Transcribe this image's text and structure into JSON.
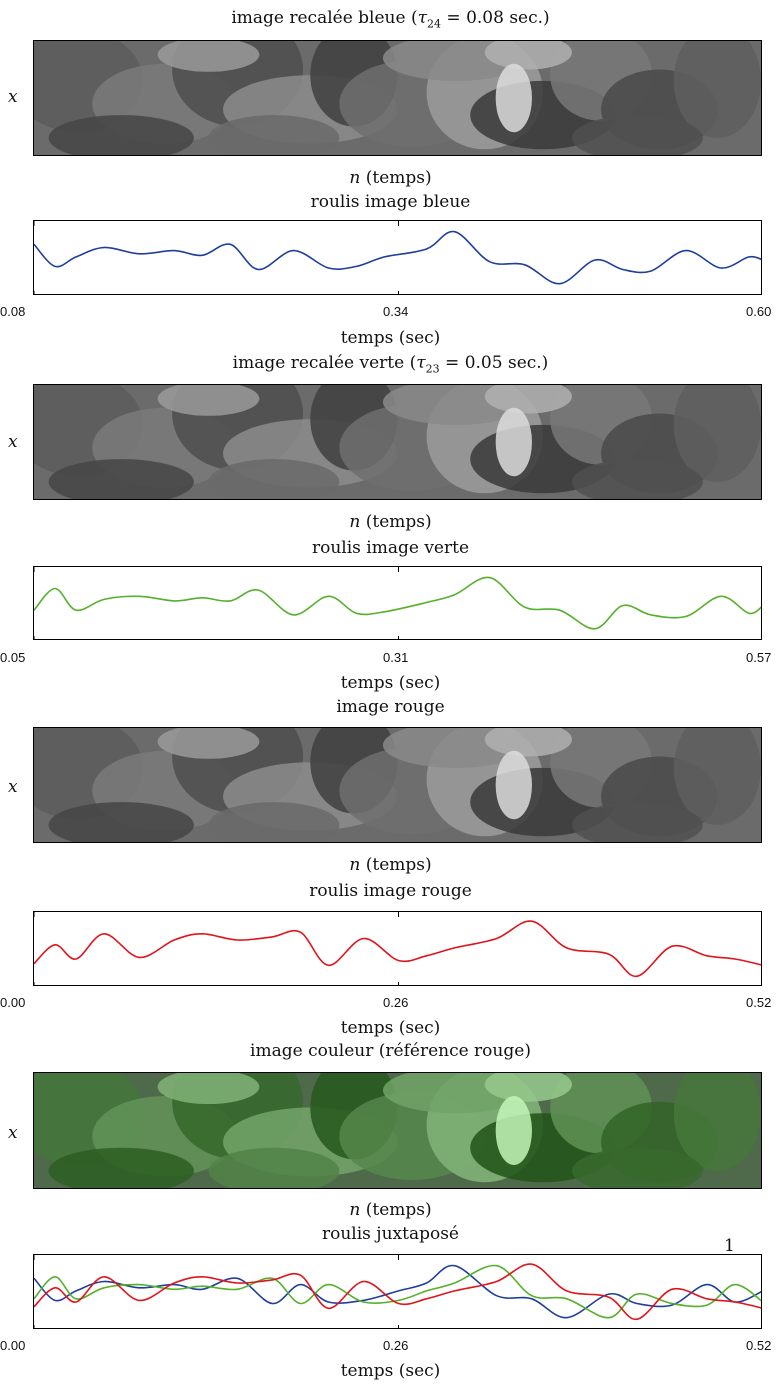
{
  "panels": [
    {
      "kind": "image",
      "title": "image recalée bleue (τ24 = 0.08 sec.)",
      "title_main": "image recalée bleue (",
      "tau": "τ",
      "tau_sub": "24",
      "title_rest": " = 0.08 sec.)",
      "ylabel": "x",
      "xlabel_var": "n",
      "xlabel_rest": " (temps)",
      "tone": "gray"
    },
    {
      "kind": "line",
      "title": "roulis image bleue",
      "xlabel": "temps (sec)"
    },
    {
      "kind": "image",
      "title": "image recalée verte (τ23 = 0.05 sec.)",
      "title_main": "image recalée verte (",
      "tau": "τ",
      "tau_sub": "23",
      "title_rest": " = 0.05 sec.)",
      "ylabel": "x",
      "xlabel_var": "n",
      "xlabel_rest": " (temps)",
      "tone": "gray"
    },
    {
      "kind": "line",
      "title": "roulis image verte",
      "xlabel": "temps (sec)"
    },
    {
      "kind": "image",
      "title": "image rouge",
      "ylabel": "x",
      "xlabel_var": "n",
      "xlabel_rest": " (temps)",
      "tone": "gray"
    },
    {
      "kind": "line",
      "title": "roulis image rouge",
      "xlabel": "temps (sec)"
    },
    {
      "kind": "image",
      "title": "image couleur (référence rouge)",
      "ylabel": "x",
      "xlabel_var": "n",
      "xlabel_rest": " (temps)",
      "tone": "color"
    },
    {
      "kind": "line",
      "title": "roulis juxtaposé",
      "xlabel": "temps (sec)",
      "annotation": "1"
    }
  ],
  "chart_data": [
    {
      "type": "line",
      "title": "roulis image bleue",
      "xlabel": "temps (sec)",
      "ylabel": "",
      "x_ticks": [
        "0.08",
        "0.34",
        "0.60"
      ],
      "xlim": [
        0.08,
        0.6
      ],
      "ylim": [
        -1,
        1
      ],
      "grid": false,
      "series": [
        {
          "color": "#1f3f9e",
          "x": [
            0.08,
            0.095,
            0.11,
            0.13,
            0.155,
            0.18,
            0.2,
            0.22,
            0.24,
            0.265,
            0.29,
            0.31,
            0.33,
            0.36,
            0.38,
            0.405,
            0.43,
            0.455,
            0.48,
            0.5,
            0.52,
            0.545,
            0.57,
            0.59,
            0.6
          ],
          "y": [
            0.45,
            -0.25,
            0.05,
            0.35,
            0.15,
            0.25,
            0.1,
            0.45,
            -0.35,
            0.25,
            -0.3,
            -0.25,
            0.05,
            0.3,
            0.85,
            -0.1,
            -0.2,
            -0.8,
            -0.05,
            -0.35,
            -0.4,
            0.25,
            -0.3,
            0.05,
            -0.05
          ]
        }
      ]
    },
    {
      "type": "line",
      "title": "roulis image verte",
      "xlabel": "temps (sec)",
      "ylabel": "",
      "x_ticks": [
        "0.05",
        "0.31",
        "0.57"
      ],
      "xlim": [
        0.05,
        0.57
      ],
      "ylim": [
        -1,
        1
      ],
      "grid": false,
      "series": [
        {
          "color": "#55b02a",
          "x": [
            0.05,
            0.065,
            0.08,
            0.1,
            0.125,
            0.15,
            0.17,
            0.19,
            0.21,
            0.235,
            0.26,
            0.28,
            0.3,
            0.33,
            0.35,
            0.375,
            0.4,
            0.425,
            0.45,
            0.47,
            0.49,
            0.515,
            0.54,
            0.56,
            0.57
          ],
          "y": [
            -0.2,
            0.5,
            -0.2,
            0.15,
            0.25,
            0.1,
            0.2,
            0.1,
            0.45,
            -0.35,
            0.25,
            -0.3,
            -0.25,
            0.05,
            0.3,
            0.85,
            -0.1,
            -0.2,
            -0.8,
            -0.05,
            -0.35,
            -0.4,
            0.25,
            -0.3,
            -0.05
          ]
        }
      ]
    },
    {
      "type": "line",
      "title": "roulis image rouge",
      "xlabel": "temps (sec)",
      "ylabel": "",
      "x_ticks": [
        "0.00",
        "0.26",
        "0.52"
      ],
      "xlim": [
        0.0,
        0.52
      ],
      "ylim": [
        -1,
        1
      ],
      "grid": false,
      "series": [
        {
          "color": "#e0141b",
          "x": [
            0.0,
            0.015,
            0.03,
            0.05,
            0.075,
            0.1,
            0.12,
            0.145,
            0.17,
            0.19,
            0.21,
            0.235,
            0.26,
            0.28,
            0.3,
            0.33,
            0.355,
            0.38,
            0.41,
            0.43,
            0.455,
            0.48,
            0.5,
            0.52
          ],
          "y": [
            -0.45,
            0.15,
            -0.3,
            0.5,
            -0.25,
            0.3,
            0.5,
            0.3,
            0.4,
            0.55,
            -0.5,
            0.35,
            -0.35,
            -0.2,
            0.05,
            0.35,
            0.9,
            0.05,
            -0.15,
            -0.85,
            0.1,
            -0.2,
            -0.3,
            -0.5
          ]
        }
      ]
    },
    {
      "type": "line",
      "title": "roulis juxtaposé",
      "xlabel": "temps (sec)",
      "ylabel": "",
      "x_ticks": [
        "0.00",
        "0.26",
        "0.52"
      ],
      "xlim": [
        0.0,
        0.52
      ],
      "ylim": [
        -1,
        1
      ],
      "grid": false,
      "annotations": [
        "1"
      ],
      "series": [
        {
          "color": "#1f3f9e",
          "x": [
            0.0,
            0.015,
            0.03,
            0.05,
            0.075,
            0.1,
            0.12,
            0.145,
            0.17,
            0.19,
            0.21,
            0.235,
            0.26,
            0.28,
            0.3,
            0.33,
            0.355,
            0.38,
            0.41,
            0.43,
            0.455,
            0.48,
            0.5,
            0.52
          ],
          "y": [
            0.45,
            -0.25,
            0.05,
            0.35,
            0.15,
            0.25,
            0.1,
            0.45,
            -0.35,
            0.25,
            -0.3,
            -0.25,
            0.05,
            0.3,
            0.85,
            -0.1,
            -0.2,
            -0.8,
            -0.05,
            -0.35,
            -0.4,
            0.25,
            -0.3,
            0.05
          ]
        },
        {
          "color": "#55b02a",
          "x": [
            0.0,
            0.015,
            0.03,
            0.05,
            0.075,
            0.1,
            0.12,
            0.145,
            0.17,
            0.19,
            0.21,
            0.235,
            0.26,
            0.28,
            0.3,
            0.33,
            0.355,
            0.38,
            0.41,
            0.43,
            0.455,
            0.48,
            0.5,
            0.52
          ],
          "y": [
            -0.2,
            0.5,
            -0.2,
            0.15,
            0.25,
            0.1,
            0.2,
            0.1,
            0.45,
            -0.35,
            0.25,
            -0.3,
            -0.25,
            0.05,
            0.3,
            0.85,
            -0.1,
            -0.2,
            -0.8,
            -0.05,
            -0.35,
            -0.4,
            0.25,
            -0.3
          ]
        },
        {
          "color": "#e0141b",
          "x": [
            0.0,
            0.015,
            0.03,
            0.05,
            0.075,
            0.1,
            0.12,
            0.145,
            0.17,
            0.19,
            0.21,
            0.235,
            0.26,
            0.28,
            0.3,
            0.33,
            0.355,
            0.38,
            0.41,
            0.43,
            0.455,
            0.48,
            0.5,
            0.52
          ],
          "y": [
            -0.45,
            0.15,
            -0.3,
            0.5,
            -0.25,
            0.3,
            0.5,
            0.3,
            0.4,
            0.55,
            -0.5,
            0.35,
            -0.35,
            -0.2,
            0.05,
            0.35,
            0.9,
            0.05,
            -0.15,
            -0.85,
            0.1,
            -0.2,
            -0.3,
            -0.5
          ]
        }
      ]
    }
  ]
}
